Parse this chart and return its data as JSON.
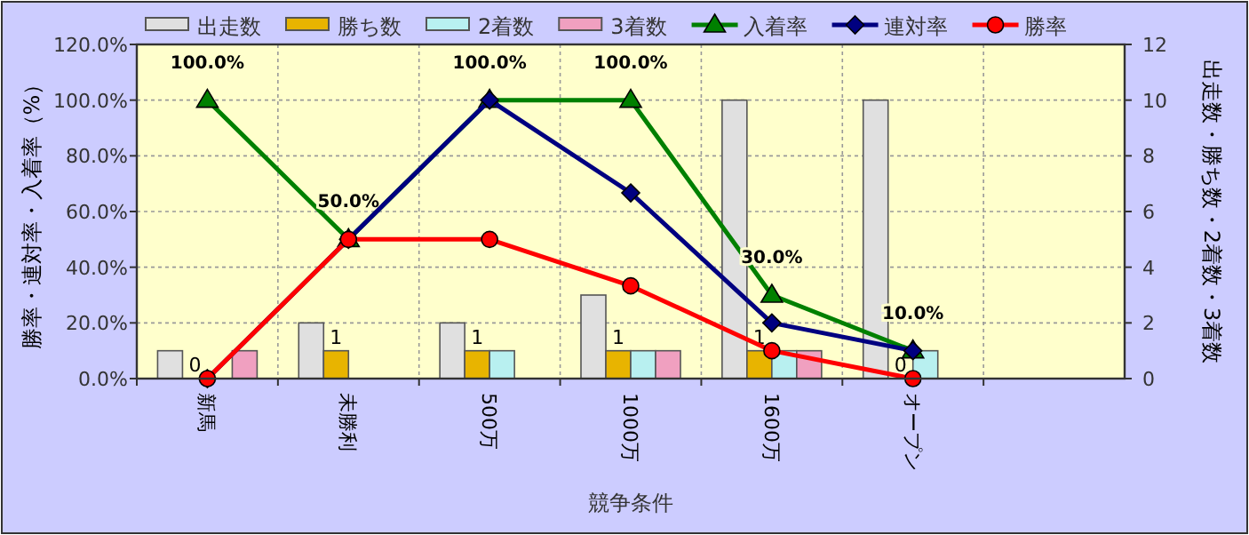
{
  "chart_data": {
    "type": "bar",
    "xlabel": "競争条件",
    "ylabel": "勝率・連対率・入着率（%）",
    "y2label": "出走数・勝ち数・2着数・3着数",
    "categories": [
      "新馬",
      "未勝利",
      "500万",
      "1000万",
      "1600万",
      "オープン",
      null
    ],
    "ylim": [
      0,
      120
    ],
    "yticks": [
      {
        "value": 0,
        "label": "0.0%"
      },
      {
        "value": 20,
        "label": "20.0%"
      },
      {
        "value": 40,
        "label": "40.0%"
      },
      {
        "value": 60,
        "label": "60.0%"
      },
      {
        "value": 80,
        "label": "80.0%"
      },
      {
        "value": 100,
        "label": "100.0%"
      },
      {
        "value": 120,
        "label": "120.0%"
      }
    ],
    "y2lim": [
      0,
      12
    ],
    "y2ticks": [
      0,
      2,
      4,
      6,
      8,
      10,
      12
    ],
    "grid": true,
    "legend": "top",
    "series": [
      {
        "name": "出走数",
        "axis": "y2",
        "color": "#e0e0e0",
        "values": [
          1,
          2,
          2,
          3,
          10,
          10,
          null
        ]
      },
      {
        "name": "勝ち数",
        "axis": "y2",
        "color": "#e8b400",
        "values": [
          0,
          1,
          1,
          1,
          1,
          0,
          null
        ],
        "value_labels": [
          "0",
          "1",
          "1",
          "1",
          "1",
          "0",
          null
        ]
      },
      {
        "name": "2着数",
        "axis": "y2",
        "color": "#b8f0f0",
        "values": [
          0,
          0,
          1,
          1,
          1,
          1,
          null
        ]
      },
      {
        "name": "3着数",
        "axis": "y2",
        "color": "#f0a0c0",
        "values": [
          1,
          0,
          0,
          1,
          1,
          0,
          null
        ]
      },
      {
        "name": "入着率",
        "type": "line",
        "color": "#008000",
        "marker": "triangle",
        "values": [
          100,
          50,
          100,
          100,
          30,
          10,
          null
        ],
        "value_labels": [
          "100.0%",
          "50.0%",
          "100.0%",
          "100.0%",
          "30.0%",
          "10.0%",
          null
        ]
      },
      {
        "name": "連対率",
        "type": "line",
        "color": "#000080",
        "marker": "diamond",
        "values": [
          0,
          50,
          100,
          66.7,
          20,
          10,
          null
        ]
      },
      {
        "name": "勝率",
        "type": "line",
        "color": "#ff0000",
        "marker": "circle",
        "values": [
          0,
          50,
          50,
          33.3,
          10,
          0,
          null
        ]
      }
    ]
  }
}
